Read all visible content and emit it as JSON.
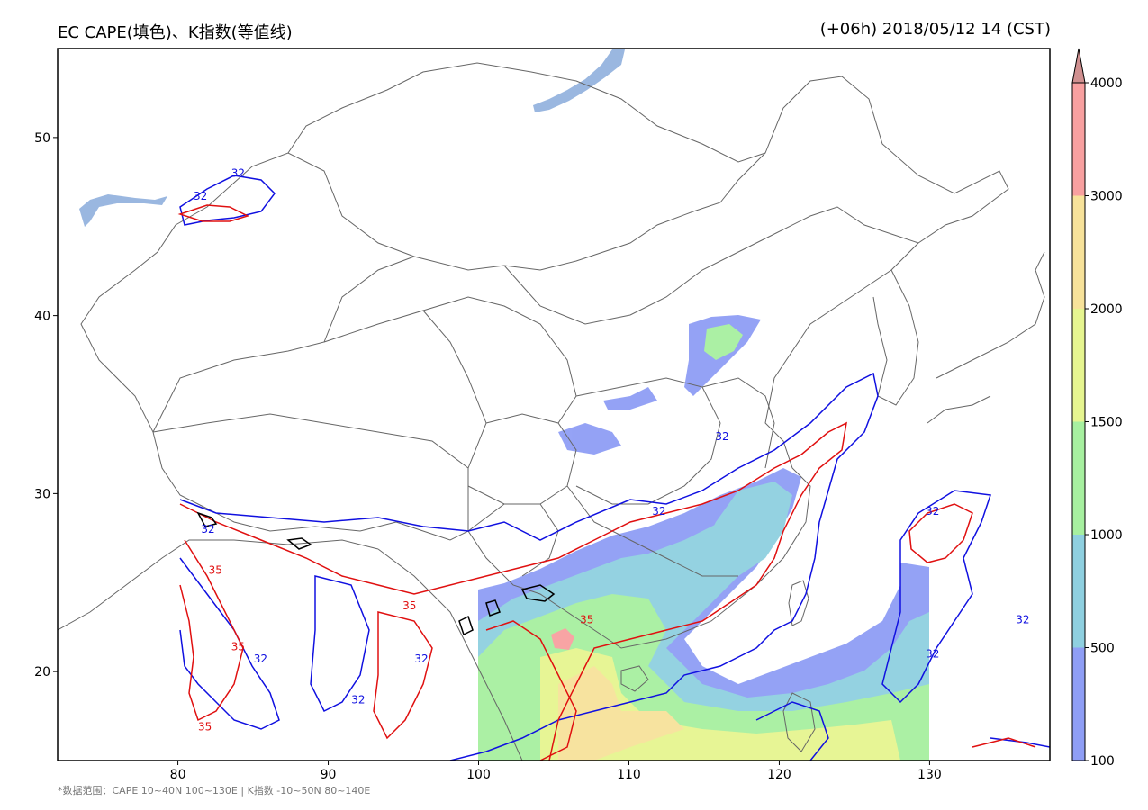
{
  "title": {
    "left": "EC CAPE(填色)、K指数(等值线)",
    "right": "(+06h) 2018/05/12 14 (CST)"
  },
  "footnote": "*数据范围：CAPE 10~40N 100~130E | K指数 -10~50N 80~140E",
  "map": {
    "lon_range": [
      72,
      138
    ],
    "lat_range": [
      15,
      55
    ],
    "lon_ticks": [
      80,
      90,
      100,
      110,
      120,
      130
    ],
    "lat_ticks": [
      20,
      30,
      40,
      50
    ],
    "colors": {
      "boundary": "#666666",
      "lake": "#9ab7e0",
      "k32_contour": "#1010e0",
      "k35_contour": "#e01010",
      "k38_contour": "#000000"
    },
    "contour_labels": [
      {
        "text": "32",
        "lon": 84.0,
        "lat": 47.8,
        "color": "#1010e0"
      },
      {
        "text": "32",
        "lon": 81.5,
        "lat": 46.5,
        "color": "#1010e0"
      },
      {
        "text": "32",
        "lon": 116.2,
        "lat": 33.0,
        "color": "#1010e0"
      },
      {
        "text": "32",
        "lon": 112.0,
        "lat": 28.8,
        "color": "#1010e0"
      },
      {
        "text": "32",
        "lon": 130.2,
        "lat": 28.8,
        "color": "#1010e0"
      },
      {
        "text": "32",
        "lon": 130.2,
        "lat": 20.8,
        "color": "#1010e0"
      },
      {
        "text": "32",
        "lon": 136.2,
        "lat": 22.7,
        "color": "#1010e0"
      },
      {
        "text": "32",
        "lon": 96.2,
        "lat": 20.5,
        "color": "#1010e0"
      },
      {
        "text": "32",
        "lon": 85.5,
        "lat": 20.5,
        "color": "#1010e0"
      },
      {
        "text": "32",
        "lon": 82.0,
        "lat": 27.8,
        "color": "#1010e0"
      },
      {
        "text": "32",
        "lon": 92.0,
        "lat": 18.2,
        "color": "#1010e0"
      },
      {
        "text": "35",
        "lon": 82.5,
        "lat": 25.5,
        "color": "#e01010"
      },
      {
        "text": "35",
        "lon": 95.4,
        "lat": 23.5,
        "color": "#e01010"
      },
      {
        "text": "35",
        "lon": 107.2,
        "lat": 22.7,
        "color": "#e01010"
      },
      {
        "text": "35",
        "lon": 84.0,
        "lat": 21.2,
        "color": "#e01010"
      },
      {
        "text": "35",
        "lon": 81.8,
        "lat": 16.7,
        "color": "#e01010"
      }
    ]
  },
  "colorbar": {
    "label_values": [
      "100",
      "500",
      "1000",
      "1500",
      "2000",
      "3000",
      "4000"
    ],
    "band_colors": [
      "#8f9ef5",
      "#8fd0e0",
      "#a7f0a0",
      "#e6f590",
      "#f7e29a",
      "#f8a0a0"
    ],
    "extend_color": "#d09090"
  },
  "chart_data": {
    "type": "map",
    "variable_fill": "CAPE",
    "variable_contour": "K指数",
    "fill_levels": [
      100,
      500,
      1000,
      1500,
      2000,
      3000,
      4000
    ],
    "contour_levels": [
      32,
      35,
      38
    ],
    "xlim": [
      72,
      138
    ],
    "ylim": [
      15,
      55
    ]
  }
}
